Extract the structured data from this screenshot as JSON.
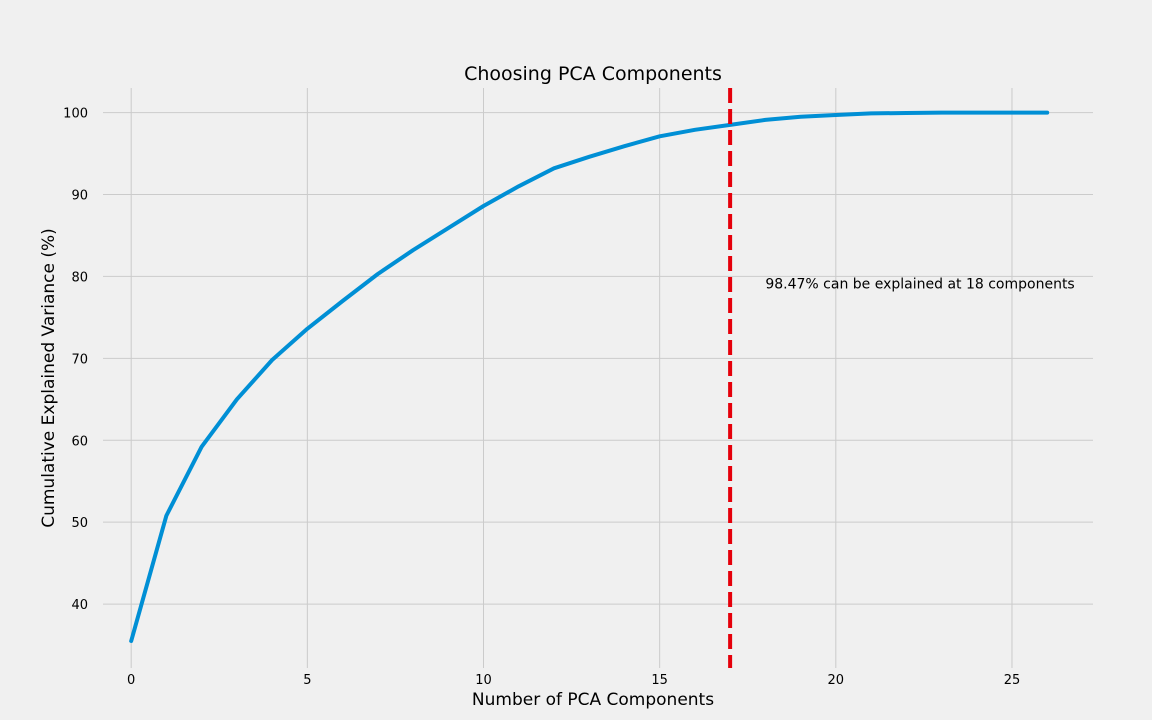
{
  "chart_data": {
    "type": "line",
    "title": "Choosing PCA Components",
    "xlabel": "Number of PCA Components",
    "ylabel": "Cumulative Explained Variance (%)",
    "xlim": [
      -0.8,
      27.3
    ],
    "ylim": [
      32.2,
      103
    ],
    "xticks": [
      0,
      5,
      10,
      15,
      20,
      25
    ],
    "yticks": [
      40,
      50,
      60,
      70,
      80,
      90,
      100
    ],
    "grid": true,
    "series": [
      {
        "color": "#008fd5",
        "x": [
          0,
          1,
          2,
          3,
          4,
          5,
          6,
          7,
          8,
          9,
          10,
          11,
          12,
          13,
          14,
          15,
          16,
          17,
          18,
          19,
          20,
          21,
          22,
          23,
          24,
          25,
          26
        ],
        "y": [
          35.5,
          50.8,
          59.2,
          65.0,
          69.8,
          73.6,
          77.0,
          80.3,
          83.2,
          85.9,
          88.6,
          91.0,
          93.2,
          94.6,
          95.9,
          97.1,
          97.9,
          98.5,
          99.1,
          99.5,
          99.7,
          99.9,
          99.95,
          100.0,
          100.0,
          100.0,
          100.0
        ]
      }
    ],
    "reference_line": {
      "orientation": "vertical",
      "x": 17,
      "color": "#e5000b",
      "style": "dashed"
    },
    "annotation": {
      "text": "98.47% can be explained at 18 components",
      "x": 18,
      "y": 78.5
    }
  }
}
